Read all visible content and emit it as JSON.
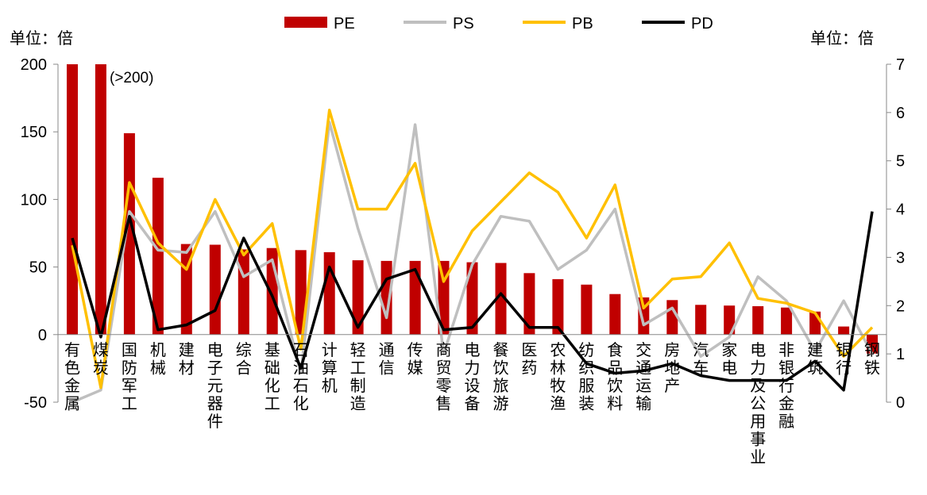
{
  "chart_data": {
    "type": "bar",
    "categories": [
      "有色金属",
      "煤炭",
      "国防军工",
      "机械",
      "建材",
      "电子元器件",
      "综合",
      "基础化工",
      "石油石化",
      "计算机",
      "轻工制造",
      "通信",
      "传媒",
      "商贸零售",
      "电力设备",
      "餐饮旅游",
      "医药",
      "农林牧渔",
      "纺织服装",
      "食品饮料",
      "交通运输",
      "房地产",
      "汽车",
      "家电",
      "电力及公用事业",
      "非银行金融",
      "建筑",
      "银行",
      "钢铁"
    ],
    "left_axis": {
      "unit_label": "单位：倍",
      "ylim": [
        -50,
        200
      ],
      "ticks": [
        200,
        150,
        100,
        50,
        0,
        -50
      ]
    },
    "right_axis": {
      "unit_label": "单位：倍",
      "ylim": [
        0,
        7
      ],
      "ticks": [
        7,
        6,
        5,
        4,
        3,
        2,
        1,
        0
      ]
    },
    "series": [
      {
        "name": "PE",
        "type": "bar",
        "axis": "left",
        "color": "#C00000",
        "values": [
          200,
          200,
          149,
          116,
          67,
          66.5,
          63,
          64,
          62.5,
          61,
          55,
          54.5,
          54.5,
          54.5,
          53.5,
          53,
          45.5,
          41,
          37,
          30,
          27.5,
          25.5,
          22,
          21.5,
          21,
          20,
          17,
          6,
          -14
        ]
      },
      {
        "name": "PS",
        "type": "line",
        "axis": "right",
        "color": "#BFBFBF",
        "values": [
          0,
          0.25,
          3.95,
          3.15,
          3.1,
          3.95,
          2.6,
          2.95,
          0.6,
          5.8,
          3.6,
          1.75,
          5.75,
          1.0,
          2.85,
          3.85,
          3.75,
          2.75,
          3.15,
          4.0,
          1.6,
          1.95,
          0.95,
          1.35,
          2.6,
          2.1,
          1.05,
          2.1,
          1.0
        ]
      },
      {
        "name": "PB",
        "type": "line",
        "axis": "right",
        "color": "#FFC000",
        "values": [
          3.25,
          0.3,
          4.55,
          3.3,
          2.75,
          4.2,
          3.05,
          3.7,
          1.1,
          6.05,
          4.0,
          4.0,
          4.95,
          2.5,
          3.55,
          4.15,
          4.75,
          4.35,
          3.4,
          4.5,
          1.95,
          2.55,
          2.6,
          3.3,
          2.15,
          2.05,
          1.85,
          0.95,
          1.55
        ]
      },
      {
        "name": "PD",
        "type": "line",
        "axis": "right",
        "color": "#000000",
        "values": [
          3.4,
          1.35,
          3.85,
          1.5,
          1.6,
          1.9,
          3.4,
          2.2,
          0.7,
          2.8,
          1.55,
          2.55,
          2.75,
          1.5,
          1.55,
          2.25,
          1.55,
          1.55,
          0.8,
          0.6,
          0.65,
          0.8,
          0.55,
          0.45,
          0.45,
          0.45,
          0.85,
          0.25,
          3.95
        ]
      }
    ],
    "annotation": "(>200)",
    "legend": {
      "position": "top",
      "entries": [
        "PE",
        "PS",
        "PB",
        "PD"
      ]
    }
  }
}
